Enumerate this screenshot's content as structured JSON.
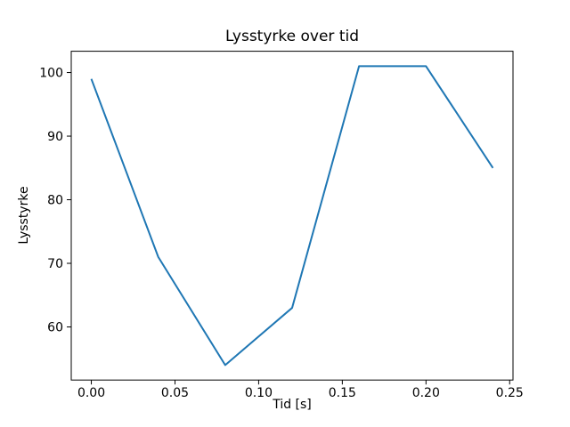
{
  "chart_data": {
    "type": "line",
    "title": "Lysstyrke over tid",
    "xlabel": "Tid [s]",
    "ylabel": "Lysstyrke",
    "x": [
      0.0,
      0.04,
      0.08,
      0.12,
      0.16,
      0.2,
      0.24
    ],
    "values": [
      99,
      71,
      54,
      63,
      101,
      101,
      85
    ],
    "line_color": "#1f77b4",
    "xlim": [
      -0.012,
      0.252
    ],
    "ylim": [
      51.65,
      103.35
    ],
    "xticks": [
      0.0,
      0.05,
      0.1,
      0.15,
      0.2,
      0.25
    ],
    "xtick_labels": [
      "0.00",
      "0.05",
      "0.10",
      "0.15",
      "0.20",
      "0.25"
    ],
    "yticks": [
      60,
      70,
      80,
      90,
      100
    ],
    "ytick_labels": [
      "60",
      "70",
      "80",
      "90",
      "100"
    ],
    "grid": false,
    "legend": null
  },
  "colors": {
    "background": "#ffffff",
    "axes": "#000000",
    "text": "#000000"
  }
}
